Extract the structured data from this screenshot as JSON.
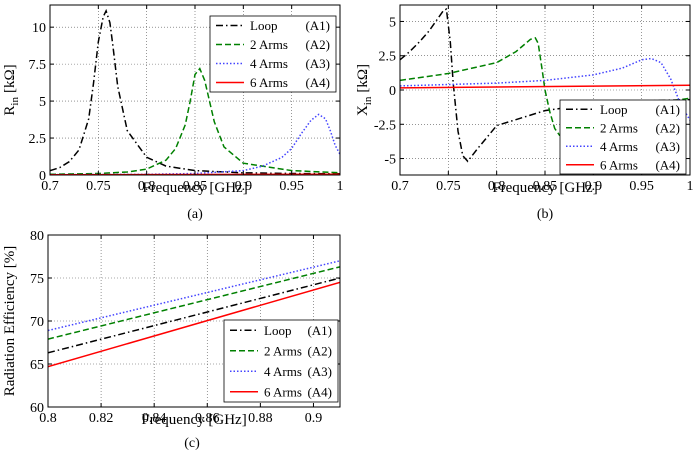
{
  "chart_data": [
    {
      "type": "line",
      "panel_label": "(a)",
      "xlabel": "Frequency [GHz]",
      "ylabel_main": "R",
      "ylabel_sub": "in",
      "ylabel_unit": "[kΩ]",
      "xlim": [
        0.7,
        1.0
      ],
      "ylim": [
        0,
        11.5
      ],
      "xticks": [
        0.7,
        0.75,
        0.8,
        0.85,
        0.9,
        0.95,
        1.0
      ],
      "xtick_labels": [
        "0.7",
        "0.75",
        "0.8",
        "0.85",
        "0.9",
        "0.95",
        "1"
      ],
      "yticks": [
        0,
        2.5,
        5,
        7.5,
        10
      ],
      "ytick_labels": [
        "0",
        "2.5",
        "5",
        "7.5",
        "10"
      ],
      "grid": true,
      "legend_position": "top-right",
      "series": [
        {
          "name": "Loop",
          "tag": "(A1)",
          "color": "#000000",
          "dash": "dashdot",
          "x": [
            0.7,
            0.71,
            0.72,
            0.73,
            0.74,
            0.745,
            0.75,
            0.755,
            0.758,
            0.762,
            0.765,
            0.77,
            0.78,
            0.8,
            0.82,
            0.85,
            0.9,
            0.95,
            1.0
          ],
          "y": [
            0.3,
            0.5,
            0.9,
            1.7,
            3.8,
            6.2,
            9.0,
            10.7,
            11.1,
            10.3,
            8.8,
            6.0,
            3.0,
            1.2,
            0.6,
            0.3,
            0.15,
            0.1,
            0.08
          ]
        },
        {
          "name": "2 Arms",
          "tag": "(A2)",
          "color": "#008000",
          "dash": "dashed",
          "x": [
            0.7,
            0.75,
            0.78,
            0.8,
            0.82,
            0.83,
            0.84,
            0.845,
            0.85,
            0.855,
            0.86,
            0.865,
            0.87,
            0.88,
            0.9,
            0.95,
            1.0
          ],
          "y": [
            0.05,
            0.1,
            0.2,
            0.4,
            1.0,
            1.8,
            3.4,
            5.0,
            6.8,
            7.2,
            6.4,
            5.0,
            3.6,
            1.9,
            0.8,
            0.3,
            0.15
          ]
        },
        {
          "name": "4 Arms",
          "tag": "(A3)",
          "color": "#4444ff",
          "dash": "dotted",
          "x": [
            0.7,
            0.8,
            0.85,
            0.9,
            0.92,
            0.94,
            0.95,
            0.96,
            0.97,
            0.978,
            0.985,
            0.99,
            0.995,
            1.0
          ],
          "y": [
            0.02,
            0.05,
            0.1,
            0.3,
            0.6,
            1.2,
            1.8,
            2.8,
            3.7,
            4.1,
            3.8,
            3.0,
            2.0,
            1.4
          ]
        },
        {
          "name": "6 Arms",
          "tag": "(A4)",
          "color": "#ff0000",
          "dash": "solid",
          "x": [
            0.7,
            1.0
          ],
          "y": [
            0.02,
            0.05
          ]
        }
      ]
    },
    {
      "type": "line",
      "panel_label": "(b)",
      "xlabel": "Frequency [GHz]",
      "ylabel_main": "X",
      "ylabel_sub": "in",
      "ylabel_unit": "[kΩ]",
      "xlim": [
        0.7,
        1.0
      ],
      "ylim": [
        -6.2,
        6.2
      ],
      "xticks": [
        0.7,
        0.75,
        0.8,
        0.85,
        0.9,
        0.95,
        1.0
      ],
      "xtick_labels": [
        "0.7",
        "0.75",
        "0.8",
        "0.85",
        "0.9",
        "0.95",
        "1"
      ],
      "yticks": [
        -5,
        -2.5,
        0,
        2.5,
        5
      ],
      "ytick_labels": [
        "-5",
        "-2.5",
        "0",
        "2.5",
        "5"
      ],
      "grid": true,
      "legend_position": "bottom-right",
      "series": [
        {
          "name": "Loop",
          "tag": "(A1)",
          "color": "#000000",
          "dash": "dashdot",
          "x": [
            0.7,
            0.71,
            0.72,
            0.73,
            0.74,
            0.745,
            0.748,
            0.752,
            0.755,
            0.76,
            0.765,
            0.77,
            0.78,
            0.8,
            0.85,
            0.9,
            0.95,
            1.0
          ],
          "y": [
            2.2,
            2.8,
            3.5,
            4.3,
            5.3,
            5.8,
            5.9,
            3.5,
            0.5,
            -3.0,
            -4.8,
            -5.2,
            -4.3,
            -2.6,
            -1.5,
            -1.0,
            -0.8,
            -0.7
          ]
        },
        {
          "name": "2 Arms",
          "tag": "(A2)",
          "color": "#008000",
          "dash": "dashed",
          "x": [
            0.7,
            0.75,
            0.8,
            0.82,
            0.83,
            0.835,
            0.84,
            0.843,
            0.847,
            0.85,
            0.855,
            0.86,
            0.865,
            0.87,
            0.88,
            0.9,
            0.95,
            1.0
          ],
          "y": [
            0.7,
            1.2,
            2.0,
            2.8,
            3.4,
            3.7,
            3.8,
            3.4,
            1.5,
            0.0,
            -1.6,
            -2.8,
            -3.3,
            -3.4,
            -2.6,
            -1.8,
            -1.1,
            -0.6
          ]
        },
        {
          "name": "4 Arms",
          "tag": "(A3)",
          "color": "#4444ff",
          "dash": "dotted",
          "x": [
            0.7,
            0.8,
            0.85,
            0.9,
            0.93,
            0.95,
            0.96,
            0.97,
            0.98,
            0.99,
            1.0
          ],
          "y": [
            0.3,
            0.5,
            0.7,
            1.1,
            1.6,
            2.2,
            2.3,
            2.0,
            0.8,
            -1.0,
            -2.2
          ]
        },
        {
          "name": "6 Arms",
          "tag": "(A4)",
          "color": "#ff0000",
          "dash": "solid",
          "x": [
            0.7,
            1.0
          ],
          "y": [
            0.15,
            0.35
          ]
        }
      ]
    },
    {
      "type": "line",
      "panel_label": "(c)",
      "xlabel": "Frequency [GHz]",
      "ylabel": "Radiation Efficiency [%]",
      "xlim": [
        0.8,
        0.91
      ],
      "ylim": [
        60,
        80
      ],
      "xticks": [
        0.8,
        0.82,
        0.84,
        0.86,
        0.88,
        0.9
      ],
      "xtick_labels": [
        "0.8",
        "0.82",
        "0.84",
        "0.86",
        "0.88",
        "0.9"
      ],
      "yticks": [
        60,
        65,
        70,
        75,
        80
      ],
      "ytick_labels": [
        "60",
        "65",
        "70",
        "75",
        "80"
      ],
      "grid": true,
      "legend_position": "bottom-right",
      "series": [
        {
          "name": "Loop",
          "tag": "(A1)",
          "color": "#000000",
          "dash": "dashdot",
          "x": [
            0.8,
            0.91
          ],
          "y": [
            66.3,
            75.0
          ]
        },
        {
          "name": "2 Arms",
          "tag": "(A2)",
          "color": "#008000",
          "dash": "dashed",
          "x": [
            0.8,
            0.91
          ],
          "y": [
            67.9,
            76.3
          ]
        },
        {
          "name": "4 Arms",
          "tag": "(A3)",
          "color": "#4444ff",
          "dash": "dotted",
          "x": [
            0.8,
            0.91
          ],
          "y": [
            68.9,
            77.0
          ]
        },
        {
          "name": "6 Arms",
          "tag": "(A4)",
          "color": "#ff0000",
          "dash": "solid",
          "x": [
            0.8,
            0.91
          ],
          "y": [
            64.7,
            74.5
          ]
        }
      ]
    }
  ]
}
